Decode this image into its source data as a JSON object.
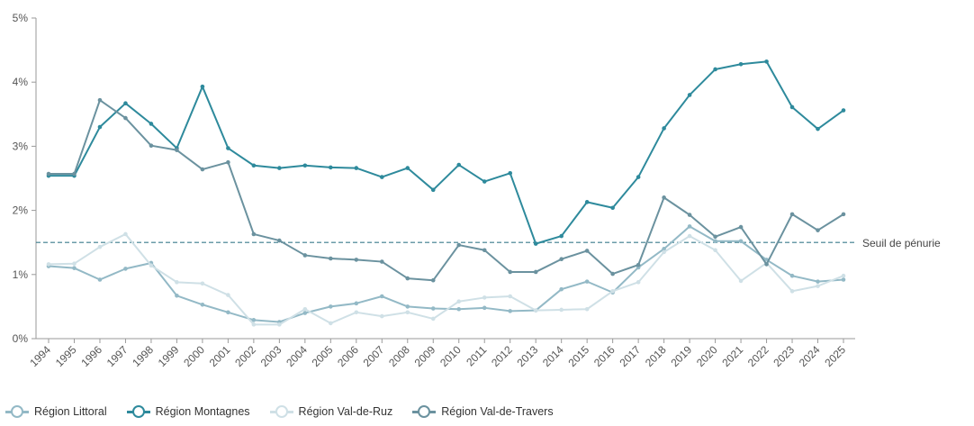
{
  "chart_data": {
    "type": "line",
    "title": "",
    "xlabel": "",
    "ylabel": "",
    "ylim": [
      0,
      5
    ],
    "y_ticks": [
      "0%",
      "1%",
      "2%",
      "3%",
      "4%",
      "5%"
    ],
    "categories": [
      "1994",
      "1995",
      "1996",
      "1997",
      "1998",
      "1999",
      "2000",
      "2001",
      "2002",
      "2003",
      "2004",
      "2005",
      "2006",
      "2007",
      "2008",
      "2009",
      "2010",
      "2011",
      "2012",
      "2013",
      "2014",
      "2015",
      "2016",
      "2017",
      "2018",
      "2019",
      "2020",
      "2021",
      "2022",
      "2023",
      "2024",
      "2025"
    ],
    "reference_line": {
      "value": 1.5,
      "label": "Seuil de pénurie",
      "color": "#3a7c8c"
    },
    "grid": false,
    "legend_position": "bottom-left",
    "series": [
      {
        "name": "Région Littoral",
        "color": "#93b9c6",
        "values": [
          1.13,
          1.1,
          0.92,
          1.09,
          1.18,
          0.67,
          0.53,
          0.41,
          0.29,
          0.26,
          0.4,
          0.5,
          0.55,
          0.66,
          0.5,
          0.47,
          0.46,
          0.48,
          0.43,
          0.44,
          0.77,
          0.89,
          0.72,
          1.11,
          1.4,
          1.75,
          1.52,
          1.52,
          1.23,
          0.98,
          0.89,
          0.92
        ]
      },
      {
        "name": "Région Montagnes",
        "color": "#2e8a9c",
        "values": [
          2.54,
          2.54,
          3.3,
          3.67,
          3.35,
          2.97,
          3.93,
          2.97,
          2.7,
          2.66,
          2.7,
          2.67,
          2.66,
          2.52,
          2.66,
          2.32,
          2.71,
          2.45,
          2.58,
          1.48,
          1.6,
          2.13,
          2.04,
          2.52,
          3.28,
          3.8,
          4.2,
          4.28,
          4.32,
          3.61,
          3.27,
          3.56
        ]
      },
      {
        "name": "Région Val-de-Ruz",
        "color": "#cfe0e6",
        "values": [
          1.16,
          1.17,
          1.43,
          1.63,
          1.14,
          0.88,
          0.86,
          0.68,
          0.22,
          0.22,
          0.46,
          0.24,
          0.41,
          0.35,
          0.41,
          0.31,
          0.58,
          0.64,
          0.66,
          0.44,
          0.45,
          0.46,
          0.74,
          0.88,
          1.35,
          1.6,
          1.38,
          0.9,
          1.18,
          0.74,
          0.82,
          0.98
        ]
      },
      {
        "name": "Région Val-de-Travers",
        "color": "#6b929f",
        "values": [
          2.57,
          2.57,
          3.72,
          3.44,
          3.01,
          2.94,
          2.64,
          2.75,
          1.63,
          1.53,
          1.3,
          1.25,
          1.23,
          1.2,
          0.94,
          0.91,
          1.46,
          1.38,
          1.04,
          1.04,
          1.24,
          1.37,
          1.01,
          1.15,
          2.2,
          1.93,
          1.59,
          1.74,
          1.16,
          1.94,
          1.69,
          1.94
        ]
      }
    ]
  }
}
